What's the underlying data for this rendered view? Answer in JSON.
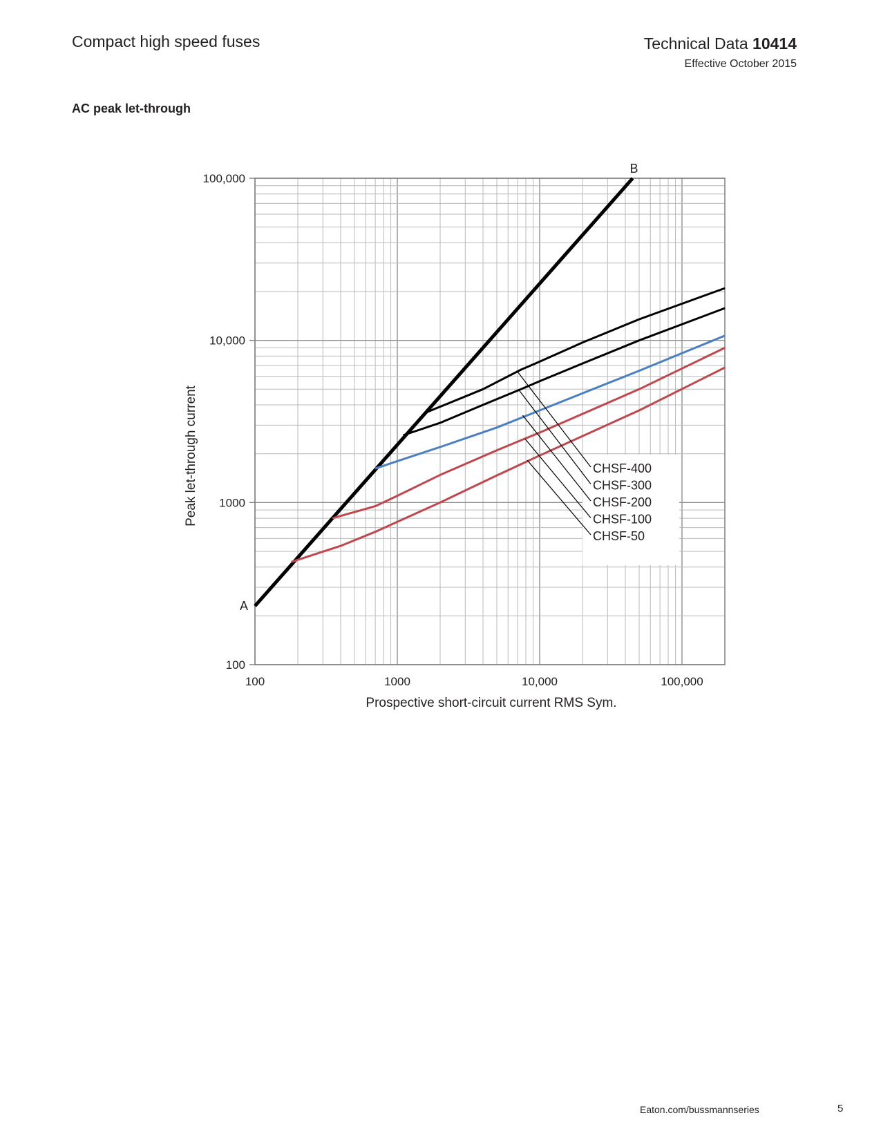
{
  "header": {
    "doc_title": "Compact high speed fuses",
    "tech_data_prefix": "Technical Data",
    "tech_data_number": "10414",
    "effective": "Effective October 2015"
  },
  "section_title": "AC peak let-through",
  "footer": {
    "url": "Eaton.com/bussmannseries",
    "page": "5"
  },
  "colors": {
    "black": "#000000",
    "blue": "#4a7fc1",
    "red": "#c1474d",
    "grid": "#a7a9ac"
  },
  "chart_data": {
    "type": "line",
    "x_scale": "log",
    "y_scale": "log",
    "xlim": [
      100,
      200000
    ],
    "ylim": [
      100,
      100000
    ],
    "grid": true,
    "xlabel": "Prospective short-circuit current RMS Sym.",
    "ylabel": "Peak let-through current",
    "x_ticks": [
      {
        "value": 100,
        "label": "100"
      },
      {
        "value": 1000,
        "label": "1000"
      },
      {
        "value": 10000,
        "label": "10,000"
      },
      {
        "value": 100000,
        "label": "100,000"
      }
    ],
    "y_ticks": [
      {
        "value": 100,
        "label": "100"
      },
      {
        "value": 1000,
        "label": "1000"
      },
      {
        "value": 10000,
        "label": "10,000"
      },
      {
        "value": 100000,
        "label": "100,000"
      }
    ],
    "annotations": [
      {
        "text": "A",
        "x": 100,
        "y": 230
      },
      {
        "text": "B",
        "x": 45000,
        "y": 100000
      }
    ],
    "series": [
      {
        "name": "A–B",
        "color": "#000000",
        "width": 5,
        "points": [
          [
            100,
            230
          ],
          [
            45000,
            100000
          ]
        ]
      },
      {
        "name": "CHSF-400",
        "color": "#000000",
        "width": 3,
        "points": [
          [
            1600,
            3600
          ],
          [
            4000,
            5000
          ],
          [
            7400,
            6600
          ],
          [
            10000,
            7400
          ],
          [
            20000,
            9700
          ],
          [
            50000,
            13500
          ],
          [
            200000,
            21000
          ]
        ]
      },
      {
        "name": "CHSF-300",
        "color": "#000000",
        "width": 3,
        "points": [
          [
            1100,
            2600
          ],
          [
            2000,
            3100
          ],
          [
            4000,
            4000
          ],
          [
            7400,
            5000
          ],
          [
            10000,
            5600
          ],
          [
            20000,
            7200
          ],
          [
            50000,
            10000
          ],
          [
            200000,
            15800
          ]
        ]
      },
      {
        "name": "CHSF-200",
        "color": "#4a7fc1",
        "width": 3,
        "points": [
          [
            700,
            1620
          ],
          [
            1000,
            1800
          ],
          [
            2000,
            2200
          ],
          [
            5000,
            2900
          ],
          [
            10000,
            3700
          ],
          [
            50000,
            6500
          ],
          [
            200000,
            10700
          ]
        ]
      },
      {
        "name": "CHSF-100",
        "color": "#c1474d",
        "width": 3,
        "points": [
          [
            350,
            800
          ],
          [
            700,
            950
          ],
          [
            1000,
            1100
          ],
          [
            2000,
            1480
          ],
          [
            5000,
            2100
          ],
          [
            10000,
            2700
          ],
          [
            50000,
            5000
          ],
          [
            200000,
            9000
          ]
        ]
      },
      {
        "name": "CHSF-50",
        "color": "#c1474d",
        "width": 3,
        "points": [
          [
            180,
            430
          ],
          [
            400,
            540
          ],
          [
            700,
            660
          ],
          [
            1000,
            760
          ],
          [
            2000,
            1000
          ],
          [
            5000,
            1470
          ],
          [
            10000,
            1950
          ],
          [
            50000,
            3700
          ],
          [
            200000,
            6800
          ]
        ]
      }
    ],
    "leaders": [
      {
        "label": "CHSF-400",
        "from": [
          7000,
          6400
        ]
      },
      {
        "label": "CHSF-300",
        "from": [
          7200,
          4900
        ]
      },
      {
        "label": "CHSF-200",
        "from": [
          7600,
          3450
        ]
      },
      {
        "label": "CHSF-100",
        "from": [
          7900,
          2470
        ]
      },
      {
        "label": "CHSF-50",
        "from": [
          8200,
          1820
        ]
      }
    ]
  }
}
